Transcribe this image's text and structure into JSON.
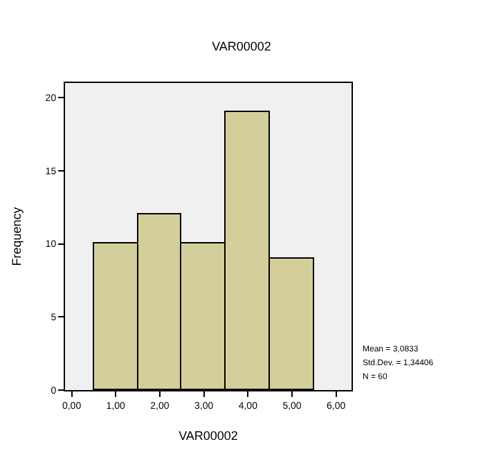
{
  "chart_data": {
    "type": "histogram",
    "title": "VAR00002",
    "xlabel": "VAR00002",
    "ylabel": "Frequency",
    "bins": [
      0.5,
      1.5,
      2.5,
      3.5,
      4.5,
      5.5
    ],
    "values": [
      10,
      12,
      10,
      19,
      9
    ],
    "color": "#d4cf9a",
    "xlim": [
      -0.15,
      6.35
    ],
    "xticks": [
      {
        "value": 0,
        "label": "0,00"
      },
      {
        "value": 1,
        "label": "1,00"
      },
      {
        "value": 2,
        "label": "2,00"
      },
      {
        "value": 3,
        "label": "3,00"
      },
      {
        "value": 4,
        "label": "4,00"
      },
      {
        "value": 5,
        "label": "5,00"
      },
      {
        "value": 6,
        "label": "6,00"
      }
    ],
    "ylim": [
      0,
      21
    ],
    "yticks": [
      0,
      5,
      10,
      15,
      20
    ],
    "grid": false,
    "legend": false,
    "annotations": [
      "Mean = 3,0833",
      "Std.Dev. = 1,34406",
      "N = 60"
    ]
  }
}
